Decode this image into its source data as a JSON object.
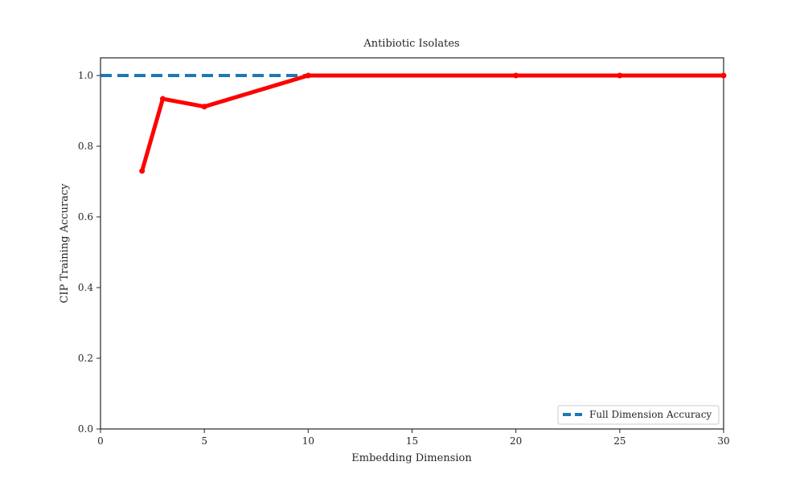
{
  "chart_data": {
    "type": "line",
    "title": "Antibiotic Isolates",
    "xlabel": "Embedding Dimension",
    "ylabel": "CIP Training Accuracy",
    "xlim": [
      0,
      30
    ],
    "ylim": [
      0.0,
      1.05
    ],
    "x_ticks": [
      0,
      5,
      10,
      15,
      20,
      25,
      30
    ],
    "y_ticks": [
      0.0,
      0.2,
      0.4,
      0.6,
      0.8,
      1.0
    ],
    "x_tick_labels": [
      "0",
      "5",
      "10",
      "15",
      "20",
      "25",
      "30"
    ],
    "y_tick_labels": [
      "0.0",
      "0.2",
      "0.4",
      "0.6",
      "0.8",
      "1.0"
    ],
    "grid": false,
    "legend_position": "lower-right",
    "series": [
      {
        "x": [
          2,
          3,
          5,
          10,
          20,
          25,
          30
        ],
        "y": [
          0.73,
          0.934,
          0.912,
          1.0,
          1.0,
          1.0,
          1.0
        ],
        "color": "#ff0000",
        "style": "solid",
        "markers": true
      }
    ],
    "reference_lines": [
      {
        "name": "Full Dimension Accuracy",
        "y": 1.0,
        "x_range": [
          0,
          30
        ],
        "color": "#1f77b4",
        "style": "dashed"
      }
    ]
  }
}
